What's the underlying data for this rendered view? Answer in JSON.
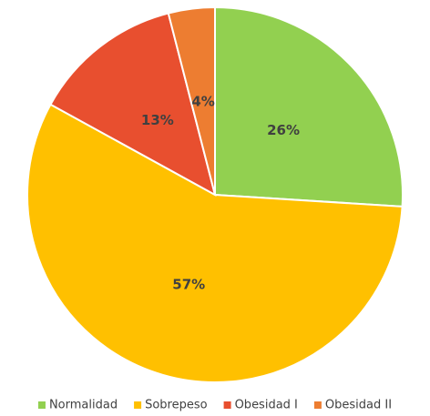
{
  "chart_data": {
    "type": "pie",
    "categories": [
      "Normalidad",
      "Sobrepeso",
      "Obesidad I",
      "Obesidad II"
    ],
    "values": [
      26,
      57,
      13,
      4
    ],
    "value_labels": [
      "26%",
      "57%",
      "13%",
      "4%"
    ],
    "colors": [
      "#92d050",
      "#ffc000",
      "#e84f2f",
      "#ed7d31"
    ],
    "legend": "bottom"
  }
}
